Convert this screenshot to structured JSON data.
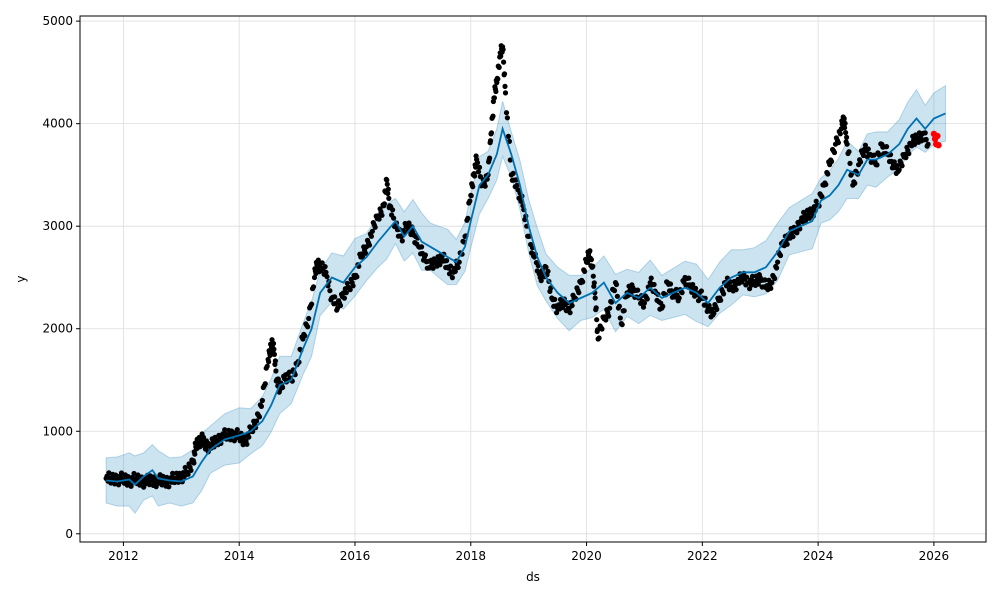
{
  "chart_data": {
    "type": "line",
    "title": "",
    "xlabel": "ds",
    "ylabel": "y",
    "x_ticks": [
      "2012",
      "2014",
      "2016",
      "2018",
      "2020",
      "2022",
      "2024",
      "2026"
    ],
    "y_ticks": [
      "0",
      "1000",
      "2000",
      "3000",
      "4000",
      "5000"
    ],
    "xlim": [
      2011.25,
      2026.9
    ],
    "ylim": [
      -80,
      5050
    ],
    "grid": true,
    "colors": {
      "forecast_line": "#0072B2",
      "uncertainty_band": "#0072B2",
      "observed_points": "#000000",
      "highlight_points": "#ff0000"
    },
    "series": [
      {
        "type": "line",
        "x": [
          2011.7,
          2011.9,
          2012.1,
          2012.2,
          2012.35,
          2012.5,
          2012.6,
          2012.8,
          2013.0,
          2013.2,
          2013.35,
          2013.5,
          2013.75,
          2014.0,
          2014.2,
          2014.4,
          2014.55,
          2014.7,
          2014.9,
          2015.1,
          2015.25,
          2015.4,
          2015.6,
          2015.8,
          2016.0,
          2016.2,
          2016.4,
          2016.55,
          2016.7,
          2016.85,
          2017.0,
          2017.15,
          2017.3,
          2017.45,
          2017.6,
          2017.75,
          2017.9,
          2018.0,
          2018.15,
          2018.3,
          2018.45,
          2018.55,
          2018.7,
          2018.85,
          2019.0,
          2019.15,
          2019.3,
          2019.5,
          2019.7,
          2019.9,
          2020.1,
          2020.3,
          2020.5,
          2020.7,
          2020.9,
          2021.1,
          2021.3,
          2021.5,
          2021.7,
          2021.9,
          2022.1,
          2022.3,
          2022.5,
          2022.7,
          2022.9,
          2023.1,
          2023.3,
          2023.5,
          2023.7,
          2023.9,
          2024.05,
          2024.2,
          2024.35,
          2024.5,
          2024.7,
          2024.85,
          2025.0,
          2025.2,
          2025.4,
          2025.55,
          2025.7,
          2025.85,
          2026.0,
          2026.2
        ],
        "y": [
          520,
          510,
          530,
          480,
          560,
          620,
          540,
          520,
          510,
          560,
          700,
          820,
          920,
          960,
          1000,
          1100,
          1250,
          1450,
          1500,
          1800,
          2000,
          2350,
          2500,
          2450,
          2600,
          2700,
          2850,
          2950,
          3050,
          2900,
          3000,
          2850,
          2800,
          2750,
          2700,
          2650,
          2800,
          3050,
          3400,
          3500,
          3700,
          3950,
          3700,
          3400,
          3000,
          2700,
          2500,
          2350,
          2250,
          2300,
          2350,
          2450,
          2250,
          2350,
          2300,
          2400,
          2300,
          2350,
          2400,
          2350,
          2250,
          2400,
          2500,
          2550,
          2550,
          2600,
          2750,
          2950,
          3000,
          3050,
          3250,
          3300,
          3400,
          3550,
          3500,
          3650,
          3650,
          3700,
          3800,
          3950,
          4050,
          3950,
          4050,
          4100
        ]
      }
    ],
    "uncertainty": {
      "offset": 250
    },
    "observed": {
      "x": [
        2011.7,
        2011.8,
        2011.9,
        2012.0,
        2012.1,
        2012.2,
        2012.3,
        2012.4,
        2012.5,
        2012.6,
        2012.7,
        2012.8,
        2012.9,
        2013.0,
        2013.1,
        2013.2,
        2013.25,
        2013.3,
        2013.35,
        2013.4,
        2013.5,
        2013.6,
        2013.7,
        2013.8,
        2013.9,
        2014.0,
        2014.1,
        2014.2,
        2014.3,
        2014.4,
        2014.5,
        2014.55,
        2014.6,
        2014.65,
        2014.7,
        2014.8,
        2014.9,
        2015.0,
        2015.1,
        2015.2,
        2015.3,
        2015.35,
        2015.4,
        2015.5,
        2015.6,
        2015.7,
        2015.8,
        2015.9,
        2016.0,
        2016.1,
        2016.2,
        2016.3,
        2016.4,
        2016.5,
        2016.55,
        2016.6,
        2016.7,
        2016.8,
        2016.9,
        2017.0,
        2017.1,
        2017.2,
        2017.3,
        2017.4,
        2017.5,
        2017.6,
        2017.7,
        2017.8,
        2017.9,
        2018.0,
        2018.05,
        2018.1,
        2018.2,
        2018.3,
        2018.35,
        2018.4,
        2018.45,
        2018.5,
        2018.55,
        2018.6,
        2018.7,
        2018.8,
        2018.9,
        2019.0,
        2019.1,
        2019.2,
        2019.3,
        2019.4,
        2019.5,
        2019.6,
        2019.7,
        2019.8,
        2019.9,
        2020.0,
        2020.05,
        2020.1,
        2020.15,
        2020.2,
        2020.3,
        2020.4,
        2020.5,
        2020.6,
        2020.7,
        2020.8,
        2020.9,
        2021.0,
        2021.1,
        2021.2,
        2021.3,
        2021.4,
        2021.5,
        2021.6,
        2021.7,
        2021.8,
        2021.9,
        2022.0,
        2022.1,
        2022.2,
        2022.3,
        2022.4,
        2022.5,
        2022.6,
        2022.7,
        2022.8,
        2022.9,
        2023.0,
        2023.1,
        2023.2,
        2023.3,
        2023.4,
        2023.5,
        2023.6,
        2023.7,
        2023.8,
        2023.9,
        2024.0,
        2024.1,
        2024.2,
        2024.3,
        2024.4,
        2024.45,
        2024.5,
        2024.6,
        2024.7,
        2024.8,
        2024.9,
        2025.0,
        2025.1,
        2025.2,
        2025.3,
        2025.4,
        2025.5,
        2025.6,
        2025.7,
        2025.8,
        2025.9
      ],
      "y": [
        540,
        530,
        540,
        530,
        520,
        530,
        520,
        510,
        520,
        520,
        510,
        520,
        540,
        560,
        600,
        700,
        850,
        900,
        920,
        880,
        850,
        900,
        950,
        960,
        970,
        950,
        900,
        1000,
        1100,
        1300,
        1700,
        1850,
        1800,
        1500,
        1400,
        1550,
        1500,
        1650,
        1900,
        2100,
        2500,
        2650,
        2600,
        2550,
        2300,
        2200,
        2350,
        2400,
        2500,
        2700,
        2800,
        2950,
        3100,
        3200,
        3450,
        3200,
        3000,
        2900,
        3000,
        2950,
        2800,
        2700,
        2600,
        2650,
        2700,
        2600,
        2550,
        2650,
        2900,
        3300,
        3500,
        3650,
        3400,
        3500,
        3900,
        4250,
        4400,
        4650,
        4750,
        4300,
        3500,
        3400,
        3200,
        2900,
        2700,
        2500,
        2600,
        2300,
        2200,
        2250,
        2200,
        2300,
        2450,
        2650,
        2750,
        2600,
        2300,
        1900,
        2100,
        2200,
        2450,
        2050,
        2350,
        2400,
        2300,
        2250,
        2450,
        2350,
        2200,
        2450,
        2350,
        2300,
        2500,
        2400,
        2350,
        2300,
        2200,
        2150,
        2300,
        2450,
        2400,
        2450,
        2500,
        2450,
        2450,
        2500,
        2400,
        2450,
        2650,
        2850,
        2900,
        2950,
        3050,
        3100,
        3150,
        3200,
        3400,
        3600,
        3800,
        3950,
        4050,
        3800,
        3400,
        3600,
        3750,
        3700,
        3600,
        3800,
        3700,
        3600,
        3550,
        3700,
        3800,
        3850,
        3900,
        3800
      ]
    },
    "highlight": {
      "x": [
        2026.0,
        2026.02,
        2026.04,
        2026.06,
        2026.08
      ],
      "y": [
        3900,
        3850,
        3800,
        3880,
        3790
      ]
    }
  }
}
